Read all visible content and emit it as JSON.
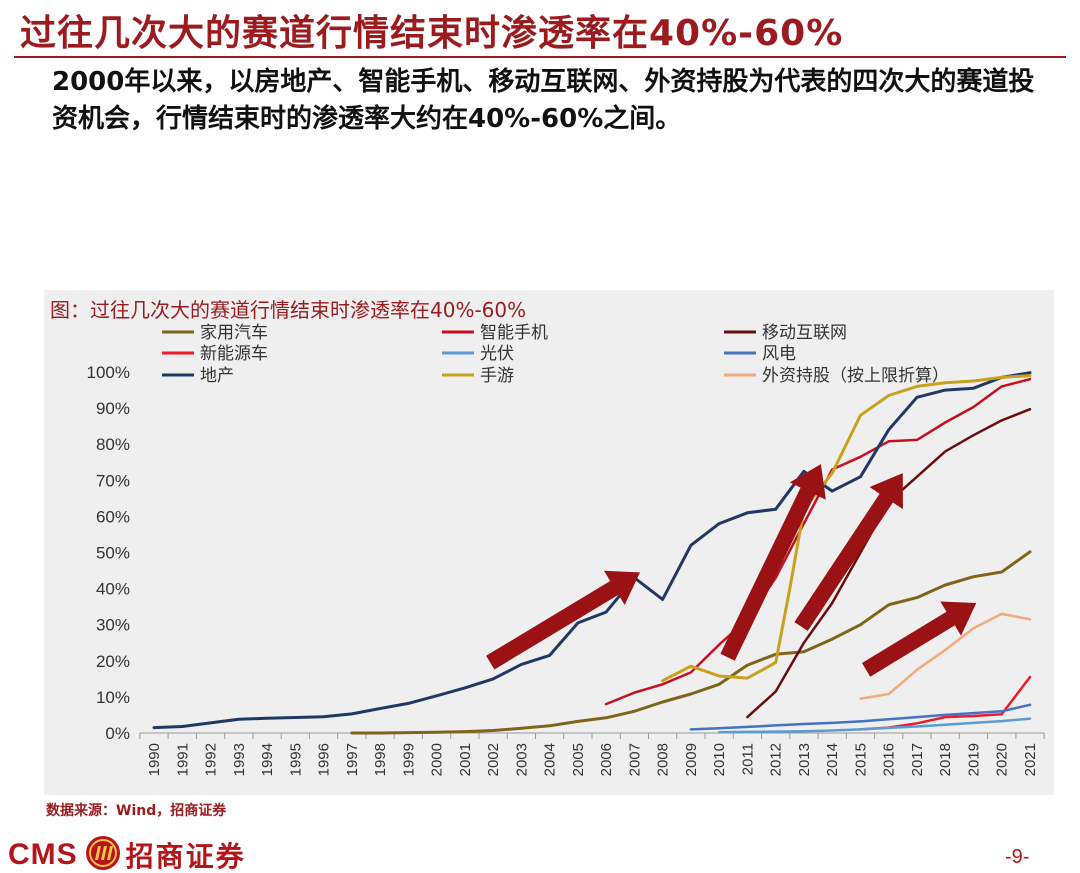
{
  "slide": {
    "title": "过往几次大的赛道行情结束时渗透率在40%-60%",
    "subtitle": "2000年以来，以房地产、智能手机、移动互联网、外资持股为代表的四次大的赛道投资机会，行情结束时的渗透率大约在40%-60%之间。",
    "source": "数据来源：Wind，招商证券",
    "logo_text": "CMS",
    "logo_name": "招商证券",
    "page_number": "-9-"
  },
  "colors": {
    "brand_red": "#9b1b1f",
    "trend_arrow": "#9b1214"
  },
  "chart_data": {
    "type": "line",
    "title": "图：过往几次大的赛道行情结束时渗透率在40%-60%",
    "xlabel": "",
    "ylabel": "",
    "x": [
      "1990",
      "1991",
      "1992",
      "1993",
      "1994",
      "1995",
      "1996",
      "1997",
      "1998",
      "1999",
      "2000",
      "2001",
      "2002",
      "2003",
      "2004",
      "2005",
      "2006",
      "2007",
      "2008",
      "2009",
      "2010",
      "2011",
      "2012",
      "2013",
      "2014",
      "2015",
      "2016",
      "2017",
      "2018",
      "2019",
      "2020",
      "2021"
    ],
    "ylim": [
      0,
      100
    ],
    "yticks": [
      "0%",
      "10%",
      "20%",
      "30%",
      "40%",
      "50%",
      "60%",
      "70%",
      "80%",
      "90%",
      "100%"
    ],
    "grid": false,
    "legend_position": "top",
    "series": [
      {
        "name": "家用汽车",
        "color": "#7f6419",
        "width": 3,
        "points": [
          [
            1997,
            0
          ],
          [
            1998,
            0
          ],
          [
            1999,
            0.1
          ],
          [
            2000,
            0.2
          ],
          [
            2001,
            0.4
          ],
          [
            2002,
            0.7
          ],
          [
            2003,
            1.3
          ],
          [
            2004,
            2
          ],
          [
            2005,
            3.2
          ],
          [
            2006,
            4.2
          ],
          [
            2007,
            6
          ],
          [
            2008,
            8.6
          ],
          [
            2009,
            10.8
          ],
          [
            2010,
            13.5
          ],
          [
            2011,
            18.8
          ],
          [
            2012,
            21.8
          ],
          [
            2013,
            22.5
          ],
          [
            2014,
            26
          ],
          [
            2015,
            30
          ],
          [
            2016,
            35.5
          ],
          [
            2017,
            37.5
          ],
          [
            2018,
            41
          ],
          [
            2019,
            43.3
          ],
          [
            2020,
            44.6
          ],
          [
            2021,
            50.2
          ]
        ]
      },
      {
        "name": "智能手机",
        "color": "#c8101c",
        "width": 2.5,
        "points": [
          [
            2006,
            8
          ],
          [
            2007,
            11.2
          ],
          [
            2008,
            13.5
          ],
          [
            2009,
            16.8
          ],
          [
            2010,
            24.5
          ],
          [
            2011,
            31.5
          ],
          [
            2012,
            43
          ],
          [
            2013,
            58
          ],
          [
            2014,
            73
          ],
          [
            2015,
            76.5
          ],
          [
            2016,
            80.8
          ],
          [
            2017,
            81.2
          ],
          [
            2018,
            86
          ],
          [
            2019,
            90.3
          ],
          [
            2020,
            96
          ],
          [
            2021,
            98
          ]
        ]
      },
      {
        "name": "移动互联网",
        "color": "#6b0d0d",
        "width": 2.5,
        "points": [
          [
            2011,
            4.4
          ],
          [
            2012,
            11.5
          ],
          [
            2013,
            25
          ],
          [
            2014,
            36
          ],
          [
            2015,
            50
          ],
          [
            2016,
            64
          ],
          [
            2017,
            71
          ],
          [
            2018,
            78
          ],
          [
            2019,
            82.5
          ],
          [
            2020,
            86.6
          ],
          [
            2021,
            89.7
          ]
        ]
      },
      {
        "name": "新能源车",
        "color": "#ef1c24",
        "width": 2.5,
        "points": [
          [
            2015,
            1
          ],
          [
            2016,
            1.5
          ],
          [
            2017,
            2.7
          ],
          [
            2018,
            4.4
          ],
          [
            2019,
            4.7
          ],
          [
            2020,
            5.2
          ],
          [
            2021,
            15.5
          ]
        ]
      },
      {
        "name": "光伏",
        "color": "#5b9bd5",
        "width": 2.5,
        "points": [
          [
            2010,
            0.2
          ],
          [
            2011,
            0.3
          ],
          [
            2012,
            0.4
          ],
          [
            2013,
            0.5
          ],
          [
            2014,
            0.7
          ],
          [
            2015,
            1
          ],
          [
            2016,
            1.4
          ],
          [
            2017,
            1.8
          ],
          [
            2018,
            2.3
          ],
          [
            2019,
            2.8
          ],
          [
            2020,
            3.3
          ],
          [
            2021,
            4
          ]
        ]
      },
      {
        "name": "风电",
        "color": "#4472c4",
        "width": 2.5,
        "points": [
          [
            2009,
            1
          ],
          [
            2010,
            1.3
          ],
          [
            2011,
            1.7
          ],
          [
            2012,
            2.1
          ],
          [
            2013,
            2.5
          ],
          [
            2014,
            2.8
          ],
          [
            2015,
            3.2
          ],
          [
            2016,
            3.8
          ],
          [
            2017,
            4.4
          ],
          [
            2018,
            5
          ],
          [
            2019,
            5.5
          ],
          [
            2020,
            6
          ],
          [
            2021,
            7.8
          ]
        ]
      },
      {
        "name": "地产",
        "color": "#1f3864",
        "width": 3,
        "points": [
          [
            1990,
            1.5
          ],
          [
            1991,
            1.8
          ],
          [
            1992,
            2.8
          ],
          [
            1993,
            3.8
          ],
          [
            1994,
            4.1
          ],
          [
            1995,
            4.3
          ],
          [
            1996,
            4.5
          ],
          [
            1997,
            5.3
          ],
          [
            1998,
            6.8
          ],
          [
            1999,
            8.2
          ],
          [
            2000,
            10.3
          ],
          [
            2001,
            12.5
          ],
          [
            2002,
            15
          ],
          [
            2003,
            19
          ],
          [
            2004,
            21.5
          ],
          [
            2005,
            30.5
          ],
          [
            2006,
            33.5
          ],
          [
            2007,
            43
          ],
          [
            2008,
            37
          ],
          [
            2009,
            52
          ],
          [
            2010,
            58
          ],
          [
            2011,
            61
          ],
          [
            2012,
            62
          ],
          [
            2013,
            72.5
          ],
          [
            2014,
            67
          ],
          [
            2015,
            71
          ],
          [
            2016,
            84
          ],
          [
            2017,
            93
          ],
          [
            2018,
            95
          ],
          [
            2019,
            95.5
          ],
          [
            2020,
            98.5
          ],
          [
            2021,
            99.8
          ]
        ]
      },
      {
        "name": "手游",
        "color": "#c9a11e",
        "width": 3,
        "points": [
          [
            2008,
            14.5
          ],
          [
            2009,
            18.5
          ],
          [
            2010,
            15.8
          ],
          [
            2011,
            15.2
          ],
          [
            2012,
            19.5
          ],
          [
            2012.5,
            40
          ],
          [
            2013,
            62
          ],
          [
            2014,
            72
          ],
          [
            2015,
            88
          ],
          [
            2016,
            93.5
          ],
          [
            2017,
            96
          ],
          [
            2018,
            97
          ],
          [
            2019,
            97.5
          ],
          [
            2020,
            98.5
          ],
          [
            2021,
            99
          ]
        ]
      },
      {
        "name": "外资持股（按上限折算）",
        "color": "#f4a97a",
        "width": 2.5,
        "points": [
          [
            2015,
            9.5
          ],
          [
            2016,
            10.8
          ],
          [
            2017,
            17.5
          ],
          [
            2018,
            23
          ],
          [
            2019,
            29
          ],
          [
            2020,
            33
          ],
          [
            2021,
            31.5
          ]
        ]
      }
    ],
    "trend_arrows": [
      {
        "from": [
          2001.9,
          19.5
        ],
        "to": [
          2007.2,
          44.5
        ]
      },
      {
        "from": [
          2010.3,
          21
        ],
        "to": [
          2013.6,
          74.5
        ]
      },
      {
        "from": [
          2012.9,
          29.5
        ],
        "to": [
          2016.5,
          72
        ]
      },
      {
        "from": [
          2015.2,
          17.5
        ],
        "to": [
          2019.1,
          36
        ]
      }
    ]
  }
}
